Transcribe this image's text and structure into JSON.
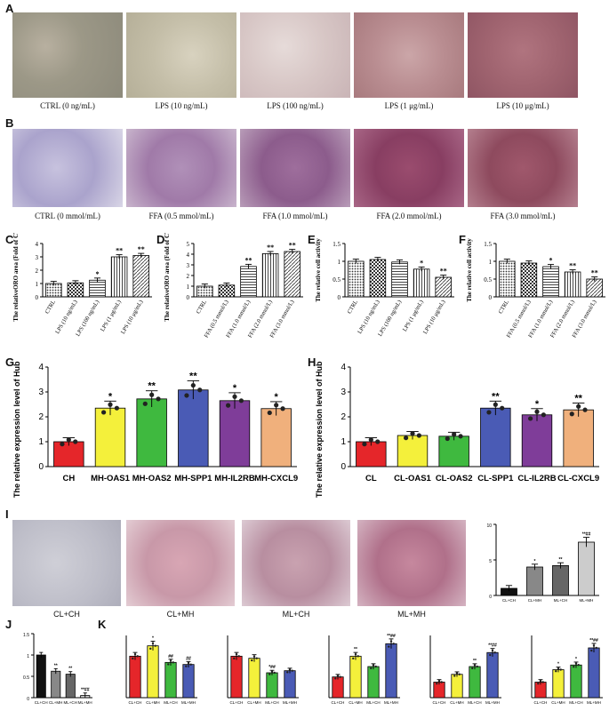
{
  "panels": {
    "A": "A",
    "B": "B",
    "C": "C",
    "D": "D",
    "E": "E",
    "F": "F",
    "G": "G",
    "H": "H",
    "I": "I",
    "J": "J",
    "K": "K"
  },
  "rowA": {
    "captions": [
      "CTRL (0 ng/mL)",
      "LPS (10 ng/mL)",
      "LPS (100 ng/mL)",
      "LPS (1 μg/mL)",
      "LPS (10 μg/mL)"
    ]
  },
  "rowB": {
    "captions": [
      "CTRL (0 mmol/mL)",
      "FFA (0.5 mmol/mL)",
      "FFA (1.0 mmol/mL)",
      "FFA (2.0 mmol/mL)",
      "FFA (3.0 mmol/mL)"
    ]
  },
  "rowI": {
    "captions": [
      "CL+CH",
      "CL+MH",
      "ML+CH",
      "ML+MH"
    ]
  },
  "colors": {
    "red": "#e5262a",
    "yellow": "#f4f03b",
    "green": "#3fb93f",
    "blue": "#4a5bb5",
    "purple": "#7f3d99",
    "orange": "#f0b07c"
  },
  "chart_data": [
    {
      "id": "C",
      "type": "bar",
      "ylabel": "The relativeORO area (Fold of CTRL)",
      "ylim": [
        0,
        4
      ],
      "yticks": [
        0,
        1,
        2,
        3,
        4
      ],
      "categories": [
        "CTRL",
        "LPS (10 ng/mL)",
        "LPS (100 ng/mL)",
        "LPS (1 μg/mL)",
        "LPS (10 μg/mL)"
      ],
      "values": [
        1.0,
        1.05,
        1.25,
        3.0,
        3.1
      ],
      "sig": [
        "",
        "",
        "*",
        "**",
        "**"
      ]
    },
    {
      "id": "D",
      "type": "bar",
      "ylabel": "The relativeORO area (Fold of CTRL)",
      "ylim": [
        0,
        5
      ],
      "yticks": [
        0,
        1,
        2,
        3,
        4,
        5
      ],
      "categories": [
        "CTRL",
        "FFA (0.5 mmol/L)",
        "FFA (1.0 mmol/L)",
        "FFA (2.0 mmol/L)",
        "FFA (3.0 mmol/L)"
      ],
      "values": [
        1.0,
        1.1,
        2.85,
        4.05,
        4.25
      ],
      "sig": [
        "",
        "",
        "**",
        "**",
        "**"
      ]
    },
    {
      "id": "E",
      "type": "bar",
      "ylabel": "The relative cell activity",
      "ylim": [
        0,
        1.5
      ],
      "yticks": [
        0.0,
        0.5,
        1.0,
        1.5
      ],
      "categories": [
        "CTRL",
        "LPS (10 ng/mL)",
        "LPS (100 ng/mL)",
        "LPS (1 μg/mL)",
        "LPS (10 μg/mL)"
      ],
      "values": [
        1.0,
        1.05,
        0.98,
        0.78,
        0.55
      ],
      "sig": [
        "",
        "",
        "",
        "*",
        "**"
      ]
    },
    {
      "id": "F",
      "type": "bar",
      "ylabel": "The relative cell activity",
      "ylim": [
        0,
        1.5
      ],
      "yticks": [
        0.0,
        0.5,
        1.0,
        1.5
      ],
      "categories": [
        "CTRL",
        "FFA (0.5 mmol/L)",
        "FFA (1.0 mmol/L)",
        "FFA (2.0 mmol/L)",
        "FFA (3.0 mmol/L)"
      ],
      "values": [
        1.0,
        0.95,
        0.85,
        0.7,
        0.5
      ],
      "sig": [
        "",
        "",
        "*",
        "**",
        "**"
      ]
    },
    {
      "id": "G",
      "type": "bar",
      "ylabel": "The relative expression level of Hub genes",
      "ylim": [
        0,
        4
      ],
      "yticks": [
        0,
        1,
        2,
        3,
        4
      ],
      "categories": [
        "CH",
        "MH-OAS1",
        "MH-OAS2",
        "MH-SPP1",
        "MH-IL2RB",
        "MH-CXCL9"
      ],
      "values": [
        1.0,
        2.35,
        2.72,
        3.08,
        2.65,
        2.33
      ],
      "sig": [
        "",
        "*",
        "**",
        "**",
        "*",
        "*"
      ]
    },
    {
      "id": "H",
      "type": "bar",
      "ylabel": "The relative expression level of Hub genes",
      "ylim": [
        0,
        4
      ],
      "yticks": [
        0,
        1,
        2,
        3,
        4
      ],
      "categories": [
        "CL",
        "CL-OAS1",
        "CL-OAS2",
        "CL-SPP1",
        "CL-IL2RB",
        "CL-CXCL9"
      ],
      "values": [
        1.0,
        1.25,
        1.22,
        2.35,
        2.08,
        2.28
      ],
      "sig": [
        "",
        "",
        "",
        "**",
        "*",
        "**"
      ]
    },
    {
      "id": "I",
      "type": "bar",
      "ylim": [
        0,
        10
      ],
      "yticks": [
        0,
        5,
        10
      ],
      "categories": [
        "CL+CH",
        "CL+MH",
        "ML+CH",
        "ML+MH"
      ],
      "values": [
        1.0,
        4.0,
        4.2,
        7.5
      ],
      "sig": [
        "",
        "*",
        "**",
        "**##"
      ]
    },
    {
      "id": "J",
      "type": "bar",
      "ylim": [
        0,
        1.5
      ],
      "yticks": [
        0.0,
        0.5,
        1.0,
        1.5
      ],
      "categories": [
        "CL+CH",
        "CL+MH",
        "ML+CH",
        "ML+MH"
      ],
      "values": [
        1.0,
        0.62,
        0.55,
        0.05
      ],
      "sig": [
        "",
        "**",
        "**",
        "**##"
      ]
    },
    {
      "id": "K1",
      "type": "bar",
      "ylim": [
        0,
        1.5
      ],
      "categories": [
        "CL+CH",
        "CL+MH",
        "ML+CH",
        "ML+MH"
      ],
      "values": [
        1.0,
        1.25,
        0.85,
        0.8
      ],
      "sig": [
        "",
        "*",
        "##",
        "##"
      ]
    },
    {
      "id": "K2",
      "type": "bar",
      "ylim": [
        0,
        1.5
      ],
      "categories": [
        "CL+CH",
        "CL+MH",
        "ML+CH",
        "ML+MH"
      ],
      "values": [
        1.0,
        0.95,
        0.6,
        0.65
      ],
      "sig": [
        "",
        "",
        "*##",
        ""
      ]
    },
    {
      "id": "K3",
      "type": "bar",
      "ylim": [
        0,
        3
      ],
      "categories": [
        "CL+CH",
        "CL+MH",
        "ML+CH",
        "ML+MH"
      ],
      "values": [
        1.0,
        2.0,
        1.5,
        2.6
      ],
      "sig": [
        "",
        "**",
        "",
        "**##"
      ]
    },
    {
      "id": "K4",
      "type": "bar",
      "ylim": [
        0,
        4
      ],
      "categories": [
        "CL+CH",
        "CL+MH",
        "ML+CH",
        "ML+MH"
      ],
      "values": [
        1.0,
        1.5,
        2.0,
        2.9
      ],
      "sig": [
        "",
        "",
        "**",
        "**##"
      ]
    },
    {
      "id": "K5",
      "type": "bar",
      "ylim": [
        0,
        4
      ],
      "categories": [
        "CL+CH",
        "CL+MH",
        "ML+CH",
        "ML+MH"
      ],
      "values": [
        1.0,
        1.8,
        2.1,
        3.2
      ],
      "sig": [
        "",
        "*",
        "*",
        "**##"
      ]
    }
  ]
}
